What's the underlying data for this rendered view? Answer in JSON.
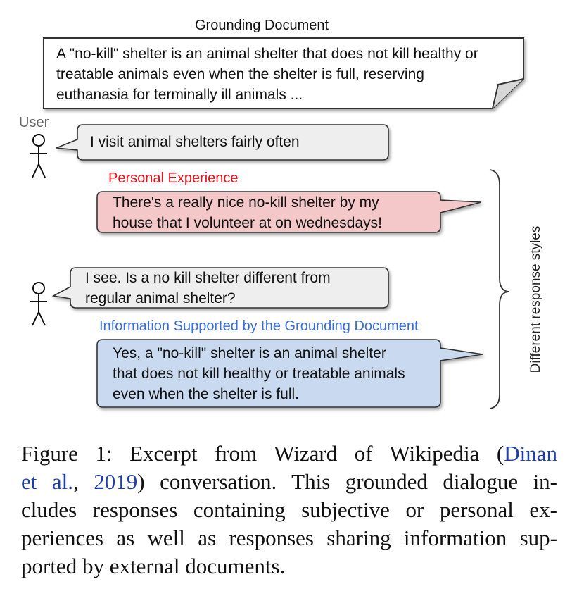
{
  "grounding": {
    "title": "Grounding Document",
    "lines": [
      "A \"no-kill\" shelter is an animal shelter that does not kill healthy or",
      "treatable animals even when the shelter is full, reserving",
      "euthanasia for terminally ill animals ..."
    ]
  },
  "user_label": "User",
  "turns": {
    "user1": [
      "I visit animal shelters fairly often"
    ],
    "personal_label": "Personal Experience",
    "personal": [
      "There's a really nice no-kill shelter by my",
      "house that I volunteer at on wednesdays!"
    ],
    "user2": [
      "I see. Is a no kill shelter different from",
      "regular animal shelter?"
    ],
    "info_label": "Information Supported by the Grounding Document",
    "info": [
      "Yes, a \"no-kill\" shelter is an animal shelter",
      "that does not kill healthy or treatable animals",
      "even when the shelter is full."
    ]
  },
  "brace_label": "Different response styles",
  "colors": {
    "personal_bubble": "#f4c7c9",
    "info_bubble": "#c9daf0",
    "user_bubble": "#eeeeee",
    "personal_label": "#e8101a",
    "info_label": "#3a6fd8",
    "citation": "#1f3fa6"
  },
  "caption": {
    "lines": [
      [
        "Figure 1: Excerpt from Wizard of Wikipedia (",
        "Dinan",
        ""
      ],
      [
        "",
        "et al.",
        ", ",
        "2019",
        ") conversation. This grounded dialogue in-"
      ],
      [
        "cludes responses containing subjective or personal ex-"
      ],
      [
        "periences as well as responses sharing information sup-"
      ],
      [
        "ported by external documents."
      ]
    ]
  }
}
